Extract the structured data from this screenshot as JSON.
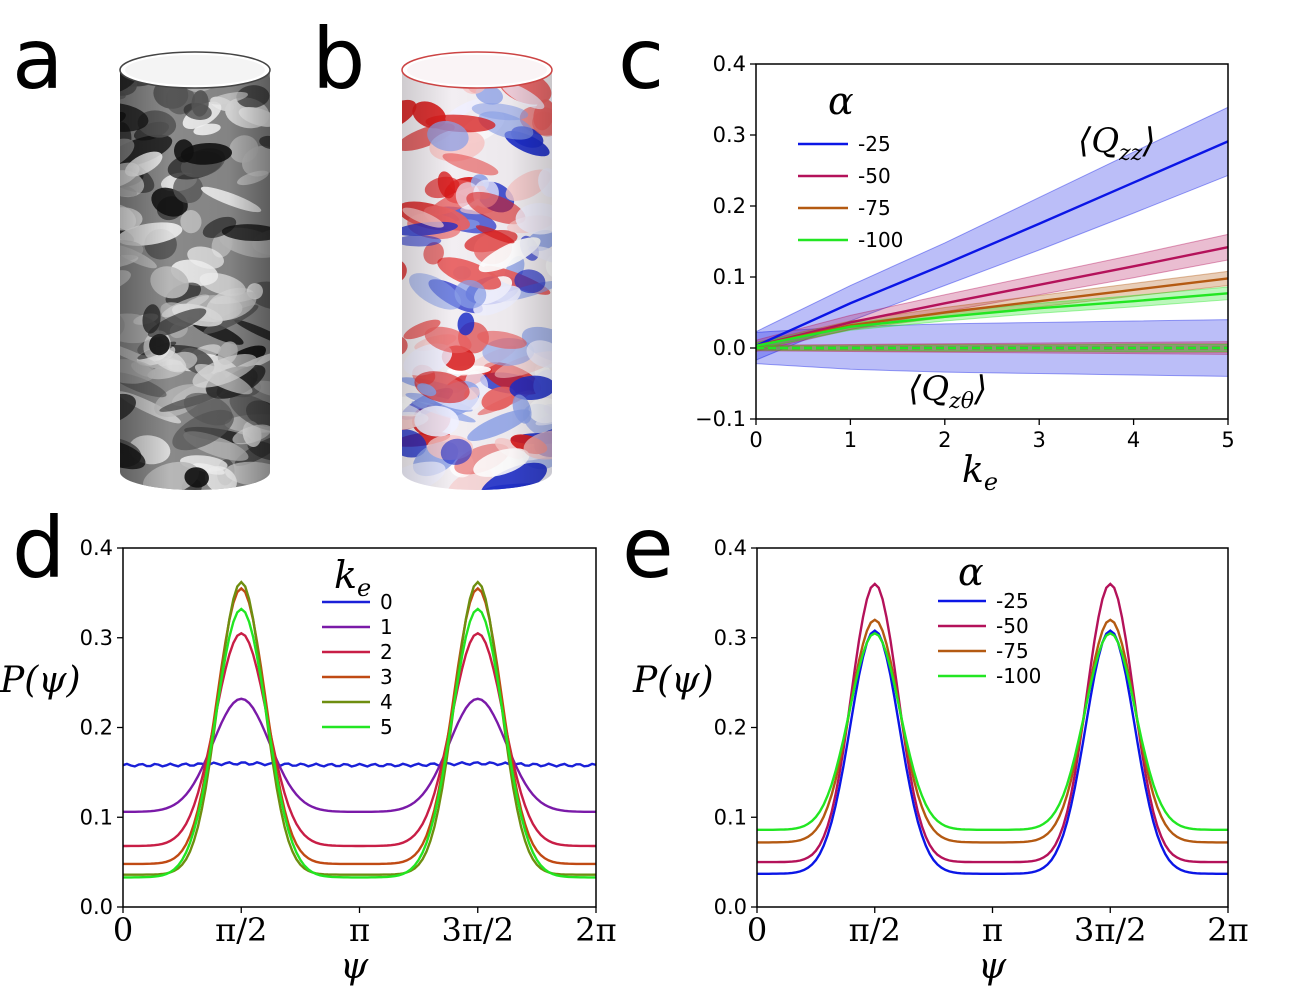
{
  "panel_labels": {
    "a": "a",
    "b": "b",
    "c": "c",
    "d": "d",
    "e": "e"
  },
  "colors": {
    "series": [
      "#0b16e6",
      "#b4125a",
      "#b45a12",
      "#22e622"
    ],
    "ke_series": [
      "#1a20d8",
      "#7a1aa8",
      "#c81e46",
      "#c04a14",
      "#6e8e10",
      "#22e622"
    ],
    "red": "#d81c1c",
    "blue": "#1c2cc8"
  },
  "chart_data": [
    {
      "id": "c",
      "type": "line",
      "x": [
        0,
        1,
        2,
        3,
        4,
        5
      ],
      "xlim": [
        0,
        5
      ],
      "ylim": [
        -0.1,
        0.4
      ],
      "xticks": [
        "0",
        "1",
        "2",
        "3",
        "4",
        "5"
      ],
      "yticks": [
        "−0.1",
        "0.0",
        "0.1",
        "0.2",
        "0.3",
        "0.4"
      ],
      "xlabel": "k",
      "xlabel_sub": "e",
      "legend_title": "α",
      "legend_position": "top-left",
      "annotations": {
        "qzz_main": "⟨Q",
        "qzz_sub": "zz",
        "qzz_close": "⟩",
        "qzt_main": "⟨Q",
        "qzt_sub": "zθ",
        "qzt_close": "⟩"
      },
      "series": [
        {
          "name": "-25",
          "qzz": [
            0.003,
            0.063,
            0.118,
            0.175,
            0.233,
            0.291
          ],
          "qzz_band": [
            0.02,
            0.025,
            0.03,
            0.037,
            0.043,
            0.048
          ],
          "qzt": [
            0.0,
            0.0,
            0.0,
            0.0,
            0.0,
            0.0
          ],
          "qzt_band": [
            0.022,
            0.03,
            0.034,
            0.036,
            0.038,
            0.04
          ]
        },
        {
          "name": "-50",
          "qzz": [
            0.003,
            0.036,
            0.063,
            0.089,
            0.115,
            0.142
          ],
          "qzz_band": [
            0.008,
            0.01,
            0.012,
            0.014,
            0.016,
            0.018
          ],
          "qzt": [
            0.0,
            0.0,
            0.0,
            0.0,
            0.0,
            0.0
          ],
          "qzt_band": [
            0.004,
            0.005,
            0.006,
            0.007,
            0.008,
            0.009
          ]
        },
        {
          "name": "-75",
          "qzz": [
            0.003,
            0.032,
            0.05,
            0.066,
            0.082,
            0.098
          ],
          "qzz_band": [
            0.005,
            0.006,
            0.007,
            0.008,
            0.009,
            0.01
          ],
          "qzt": [
            0.0,
            0.0,
            0.0,
            0.0,
            0.0,
            0.0
          ],
          "qzt_band": [
            0.003,
            0.004,
            0.005,
            0.005,
            0.006,
            0.006
          ]
        },
        {
          "name": "-100",
          "qzz": [
            0.003,
            0.03,
            0.044,
            0.056,
            0.066,
            0.077
          ],
          "qzz_band": [
            0.004,
            0.005,
            0.006,
            0.007,
            0.008,
            0.009
          ],
          "qzt": [
            0.0,
            0.0,
            0.0,
            0.0,
            0.0,
            0.0
          ],
          "qzt_band": [
            0.003,
            0.003,
            0.004,
            0.004,
            0.005,
            0.005
          ]
        }
      ]
    },
    {
      "id": "d",
      "type": "line",
      "xlim": [
        0,
        6.2832
      ],
      "ylim": [
        0,
        0.4
      ],
      "xticks": [
        "0",
        "π/2",
        "π",
        "3π/2",
        "2π"
      ],
      "yticks": [
        "0.0",
        "0.1",
        "0.2",
        "0.3",
        "0.4"
      ],
      "xlabel": "ψ",
      "ylabel": "P(ψ)",
      "legend_title": "k",
      "legend_title_sub": "e",
      "legend_position": "top-center",
      "series": [
        {
          "name": "0",
          "peak": 0.16,
          "trough": 0.158,
          "width": 1.0
        },
        {
          "name": "1",
          "peak": 0.232,
          "trough": 0.106,
          "width": 0.9
        },
        {
          "name": "2",
          "peak": 0.305,
          "trough": 0.068,
          "width": 0.82
        },
        {
          "name": "3",
          "peak": 0.355,
          "trough": 0.048,
          "width": 0.76
        },
        {
          "name": "4",
          "peak": 0.362,
          "trough": 0.036,
          "width": 0.72
        },
        {
          "name": "5",
          "peak": 0.332,
          "trough": 0.033,
          "width": 0.8
        }
      ]
    },
    {
      "id": "e",
      "type": "line",
      "xlim": [
        0,
        6.2832
      ],
      "ylim": [
        0,
        0.4
      ],
      "xticks": [
        "0",
        "π/2",
        "π",
        "3π/2",
        "2π"
      ],
      "yticks": [
        "0.0",
        "0.1",
        "0.2",
        "0.3",
        "0.4"
      ],
      "xlabel": "ψ",
      "ylabel": "P(ψ)",
      "legend_title": "α",
      "legend_position": "top-center",
      "series": [
        {
          "name": "-25",
          "peak": 0.308,
          "trough": 0.037,
          "width": 0.78
        },
        {
          "name": "-50",
          "peak": 0.36,
          "trough": 0.05,
          "width": 0.74
        },
        {
          "name": "-75",
          "peak": 0.32,
          "trough": 0.072,
          "width": 0.78
        },
        {
          "name": "-100",
          "peak": 0.305,
          "trough": 0.086,
          "width": 0.8
        }
      ]
    }
  ]
}
